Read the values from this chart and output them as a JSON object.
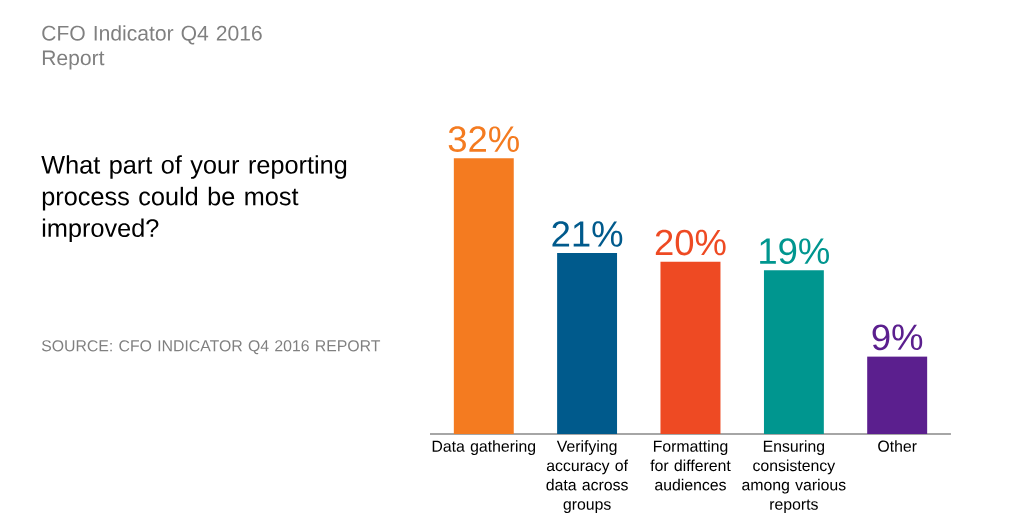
{
  "chart_data": {
    "type": "bar",
    "subtitle": "CFO Indicator Q4 2016 Report",
    "title": "What part of your reporting process could be most improved?",
    "categories": [
      "Data gathering",
      "Verifying accuracy of data across groups",
      "Formatting for different audiences",
      "Ensuring consistency among various reports",
      "Other"
    ],
    "values": [
      32,
      21,
      20,
      19,
      9
    ],
    "value_labels": [
      "32%",
      "21%",
      "20%",
      "19%",
      "9%"
    ],
    "colors": [
      "#f47b20",
      "#005a8c",
      "#ee4a23",
      "#00968f",
      "#5b1f8e"
    ],
    "annotations": [
      "SOURCE: CFO INDICATOR Q4 2016 REPORT"
    ]
  }
}
